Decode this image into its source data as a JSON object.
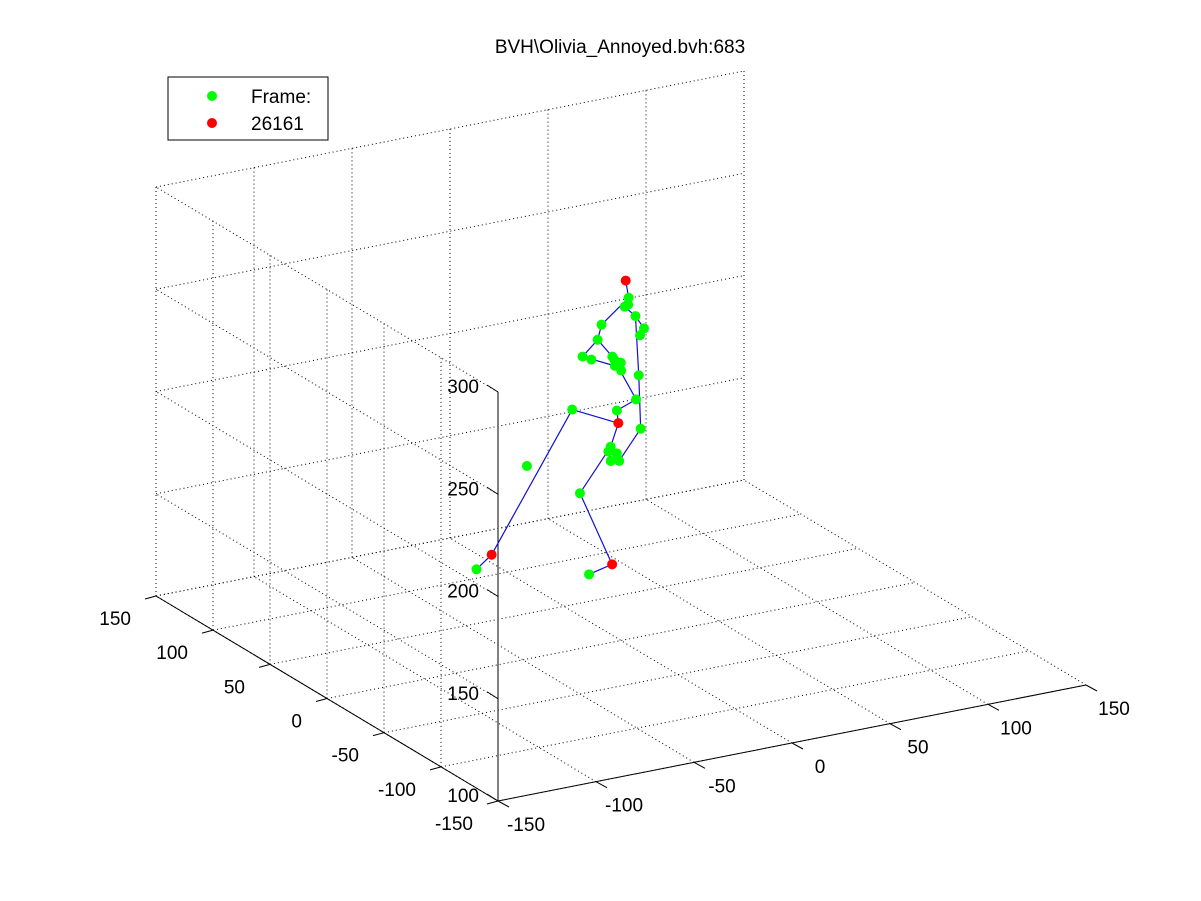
{
  "chart_data": {
    "type": "scatter",
    "title": "BVH\\Olivia_Annoyed.bvh:683",
    "grid": true,
    "legend_position": "top-left",
    "legend": [
      {
        "label": "Frame:",
        "color": "#00ff00"
      },
      {
        "label": "26161",
        "color": "#ff0000"
      }
    ],
    "zlim": [
      100,
      300
    ],
    "z_ticks": [
      "100",
      "150",
      "200",
      "250",
      "300"
    ],
    "xlim": [
      -150,
      150
    ],
    "x_ticks": [
      "-150",
      "-100",
      "-50",
      "0",
      "50",
      "100",
      "150"
    ],
    "ylim": [
      -150,
      150
    ],
    "y_ticks": [
      "-150",
      "-100",
      "-50",
      "0",
      "50",
      "100",
      "150"
    ],
    "colors": {
      "joint": "#00ff00",
      "marker": "#ff0000",
      "bone": "#1010d0"
    },
    "joints": [
      {
        "x": 28,
        "y": 44,
        "z": 256,
        "red": true
      },
      {
        "x": 26,
        "y": 38,
        "z": 250
      },
      {
        "x": 24,
        "y": 35,
        "z": 248
      },
      {
        "x": 24,
        "y": 38,
        "z": 246
      },
      {
        "x": 26,
        "y": 32,
        "z": 243
      },
      {
        "x": 28,
        "y": 28,
        "z": 238
      },
      {
        "x": 26,
        "y": 28,
        "z": 235
      },
      {
        "x": 18,
        "y": 48,
        "z": 235
      },
      {
        "x": 16,
        "y": 48,
        "z": 228
      },
      {
        "x": 20,
        "y": 42,
        "z": 221
      },
      {
        "x": 20,
        "y": 40,
        "z": 220
      },
      {
        "x": 22,
        "y": 38,
        "z": 219
      },
      {
        "x": 19,
        "y": 38,
        "z": 218
      },
      {
        "x": 21,
        "y": 36,
        "z": 216
      },
      {
        "x": 6,
        "y": 44,
        "z": 223
      },
      {
        "x": 14,
        "y": 50,
        "z": 218
      },
      {
        "x": 24,
        "y": 28,
        "z": 204
      },
      {
        "x": 30,
        "y": 36,
        "z": 212
      },
      {
        "x": 20,
        "y": 38,
        "z": 196
      },
      {
        "x": 19,
        "y": 35,
        "z": 191,
        "red": true
      },
      {
        "x": 24,
        "y": 24,
        "z": 191
      },
      {
        "x": 10,
        "y": 60,
        "z": 191
      },
      {
        "x": 18,
        "y": 40,
        "z": 178
      },
      {
        "x": 20,
        "y": 38,
        "z": 175
      },
      {
        "x": 18,
        "y": 42,
        "z": 175
      },
      {
        "x": 20,
        "y": 36,
        "z": 172
      },
      {
        "x": 18,
        "y": 40,
        "z": 171
      },
      {
        "x": -16,
        "y": 55,
        "z": 170
      },
      {
        "x": 0,
        "y": 36,
        "z": 160
      },
      {
        "x": -34,
        "y": 55,
        "z": 130,
        "red": true
      },
      {
        "x": -40,
        "y": 58,
        "z": 123
      },
      {
        "x": 10,
        "y": 25,
        "z": 127,
        "red": true
      },
      {
        "x": 0,
        "y": 28,
        "z": 123
      }
    ],
    "bones": [
      [
        0,
        1
      ],
      [
        1,
        2
      ],
      [
        2,
        3
      ],
      [
        3,
        4
      ],
      [
        4,
        5
      ],
      [
        5,
        6
      ],
      [
        1,
        7
      ],
      [
        7,
        8
      ],
      [
        8,
        9
      ],
      [
        9,
        10
      ],
      [
        10,
        11
      ],
      [
        8,
        14
      ],
      [
        14,
        12
      ],
      [
        14,
        15
      ],
      [
        4,
        17
      ],
      [
        17,
        20
      ],
      [
        20,
        25
      ],
      [
        9,
        16
      ],
      [
        16,
        18
      ],
      [
        18,
        19
      ],
      [
        19,
        21
      ],
      [
        21,
        29
      ],
      [
        29,
        30
      ],
      [
        19,
        22
      ],
      [
        22,
        28
      ],
      [
        28,
        31
      ],
      [
        31,
        32
      ],
      [
        22,
        23
      ],
      [
        22,
        24
      ],
      [
        24,
        26
      ]
    ]
  }
}
